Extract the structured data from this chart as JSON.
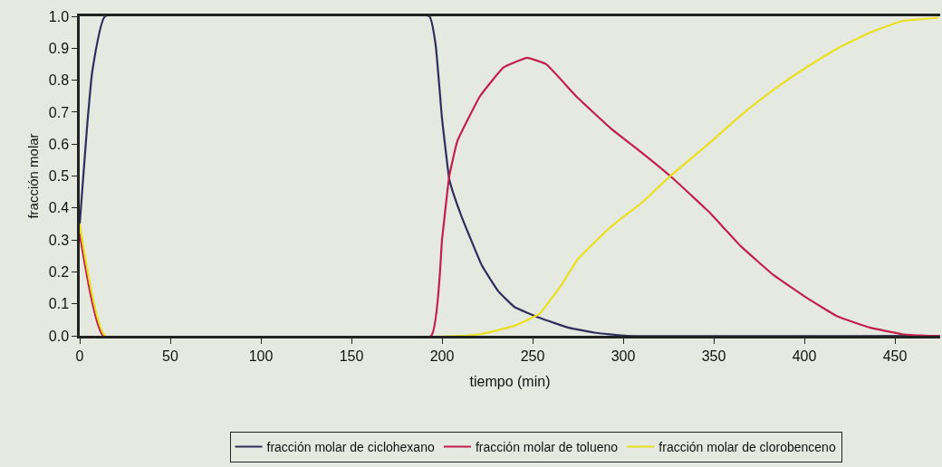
{
  "chart_data": {
    "type": "line",
    "xlabel": "tiempo (min)",
    "ylabel": "fracción molar",
    "xlim": [
      0,
      475
    ],
    "ylim": [
      0,
      1
    ],
    "xticks": [
      0,
      50,
      100,
      150,
      200,
      250,
      300,
      350,
      400,
      450
    ],
    "yticks": [
      {
        "value": 0,
        "label": "0.0"
      },
      {
        "value": 0.1,
        "label": "0.1"
      },
      {
        "value": 0.2,
        "label": "0.2"
      },
      {
        "value": 0.3,
        "label": "0.3"
      },
      {
        "value": 0.4,
        "label": "0.4"
      },
      {
        "value": 0.5,
        "label": "0.5"
      },
      {
        "value": 0.6,
        "label": "0.6"
      },
      {
        "value": 0.7,
        "label": "0.7"
      },
      {
        "value": 0.8,
        "label": "0.8"
      },
      {
        "value": 0.9,
        "label": "0.9"
      },
      {
        "value": 1,
        "label": "1.0"
      }
    ],
    "grid": false,
    "legend": "bottom",
    "marker": "none",
    "line_style": "solid",
    "series": [
      {
        "name": "fracción molar de ciclohexano",
        "color": "#2e2f5c",
        "x": [
          0,
          4,
          7,
          14,
          193,
          196.5,
          200,
          204,
          206,
          211,
          222,
          231,
          240,
          254,
          270,
          284,
          302,
          475
        ],
        "values": [
          0.35,
          0.65,
          0.83,
          1,
          1,
          0.91,
          0.68,
          0.49,
          0.45,
          0.37,
          0.22,
          0.14,
          0.09,
          0.056,
          0.025,
          0.01,
          0,
          0
        ]
      },
      {
        "name": "fracción molar de tolueno",
        "color": "#c0204a",
        "x": [
          0,
          13,
          194,
          200,
          204,
          208.5,
          221,
          234,
          247,
          257.5,
          274,
          293,
          311,
          326,
          347,
          365,
          383,
          401,
          418.5,
          436.5,
          454,
          469,
          475
        ],
        "values": [
          0.32,
          0,
          0,
          0.3,
          0.5,
          0.61,
          0.75,
          0.84,
          0.87,
          0.85,
          0.75,
          0.65,
          0.57,
          0.5,
          0.39,
          0.28,
          0.19,
          0.12,
          0.06,
          0.025,
          0.005,
          0,
          0
        ]
      },
      {
        "name": "fracción molar de clorobenceno",
        "color": "#e8e020",
        "x": [
          0,
          14,
          210,
          221,
          239.5,
          254,
          266,
          275,
          293,
          311,
          326,
          347,
          365,
          383,
          401,
          418.5,
          436.5,
          454,
          474
        ],
        "values": [
          0.35,
          0,
          0,
          0.005,
          0.03,
          0.07,
          0.16,
          0.24,
          0.34,
          0.42,
          0.5,
          0.6,
          0.69,
          0.77,
          0.84,
          0.9,
          0.95,
          0.985,
          0.995
        ]
      }
    ]
  }
}
